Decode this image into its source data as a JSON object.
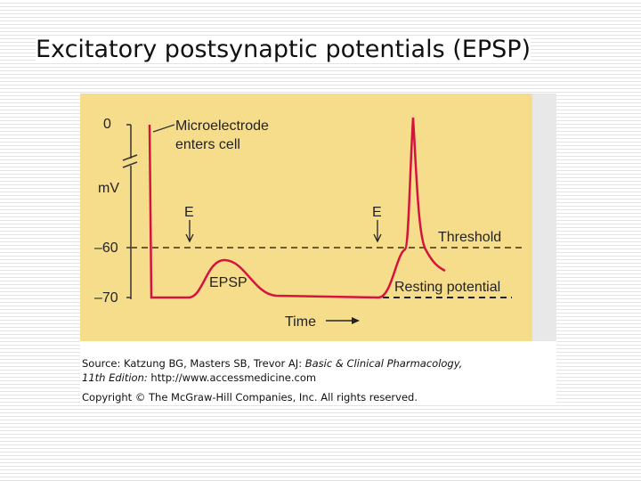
{
  "slide": {
    "title": "Excitatory postsynaptic potentials (EPSP)"
  },
  "figure": {
    "axis_labels": {
      "top": "0",
      "unit": "mV",
      "mid": "–60",
      "bottom": "–70"
    },
    "annotations": {
      "electrode_1": "Microelectrode",
      "electrode_2": "enters cell",
      "stimulus_1": "E",
      "stimulus_2": "E",
      "epsp": "EPSP",
      "threshold": "Threshold",
      "resting": "Resting potential",
      "time": "Time"
    }
  },
  "caption": {
    "source_prefix": "Source: Katzung BG, Masters SB, Trevor AJ: ",
    "source_book": "Basic & Clinical Pharmacology,",
    "edition": "11th Edition:",
    "url": " http://www.accessmedicine.com",
    "copyright": "Copyright © The McGraw-Hill Companies, Inc. All rights reserved."
  }
}
